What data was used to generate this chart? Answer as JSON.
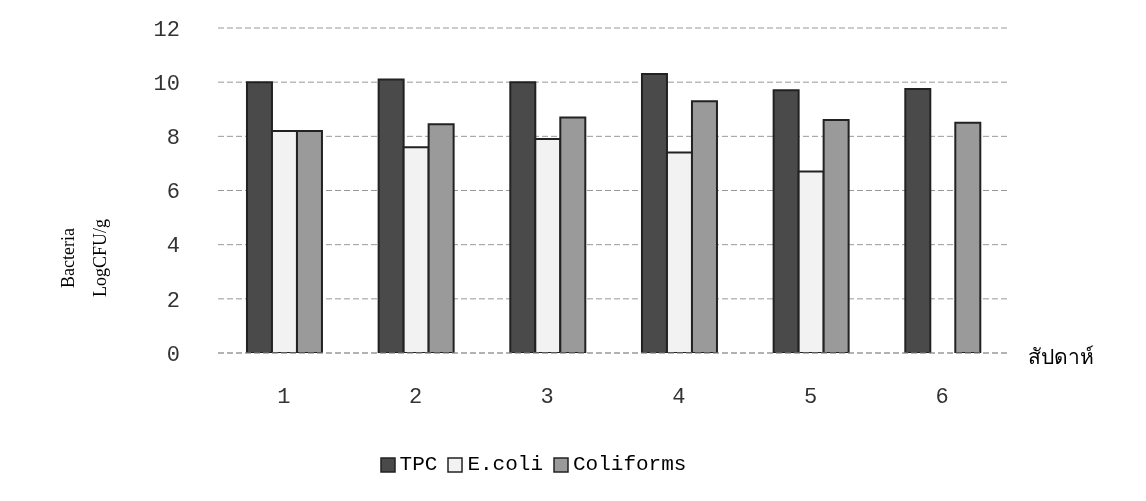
{
  "chart_data": {
    "type": "bar",
    "categories": [
      "1",
      "2",
      "3",
      "4",
      "5",
      "6"
    ],
    "series": [
      {
        "name": "TPC",
        "color": "#4a4a4a",
        "values": [
          10.0,
          10.1,
          10.0,
          10.3,
          9.7,
          9.75
        ]
      },
      {
        "name": "E.coli",
        "color": "#f2f2f2",
        "values": [
          8.2,
          7.6,
          7.9,
          7.4,
          6.7,
          null
        ]
      },
      {
        "name": "Coliforms",
        "color": "#9a9a9a",
        "values": [
          8.2,
          8.45,
          8.7,
          9.3,
          8.6,
          8.5
        ]
      }
    ],
    "ylim": [
      0,
      12
    ],
    "yticks": [
      0,
      2,
      4,
      6,
      8,
      10,
      12
    ],
    "grid": "y",
    "legend": "bottom",
    "xlabel": "สัปดาห์",
    "ylabel": "Bacteria\nLogCFU/g"
  }
}
